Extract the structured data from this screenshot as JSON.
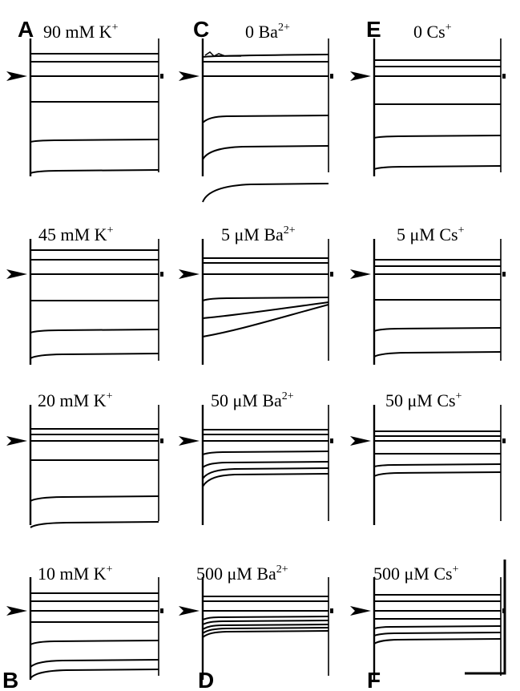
{
  "panel_letters": [
    "A",
    "B",
    "C",
    "D",
    "E",
    "F"
  ],
  "columns": [
    {
      "rows": [
        {
          "name": "90",
          "unit": "mM K",
          "sup": "+"
        },
        {
          "name": "45",
          "unit": "mM K",
          "sup": "+"
        },
        {
          "name": "20",
          "unit": "mM K",
          "sup": "+"
        },
        {
          "name": "10",
          "unit": "mM K",
          "sup": "+"
        }
      ]
    },
    {
      "rows": [
        {
          "name": "0",
          "unit": "Ba",
          "sup": "2+"
        },
        {
          "name": "5",
          "unit": "μM Ba",
          "sup": "2+"
        },
        {
          "name": "50",
          "unit": "μM Ba",
          "sup": "2+"
        },
        {
          "name": "500",
          "unit": "μM Ba",
          "sup": "2+"
        }
      ]
    },
    {
      "rows": [
        {
          "name": "0",
          "unit": "Cs",
          "sup": "+"
        },
        {
          "name": "5",
          "unit": "μM Cs",
          "sup": "+"
        },
        {
          "name": "50",
          "unit": "μM Cs",
          "sup": "+"
        },
        {
          "name": "500",
          "unit": "μM Cs",
          "sup": "+"
        }
      ]
    }
  ],
  "colors": {
    "ink": "#000000",
    "background": "#ffffff"
  }
}
